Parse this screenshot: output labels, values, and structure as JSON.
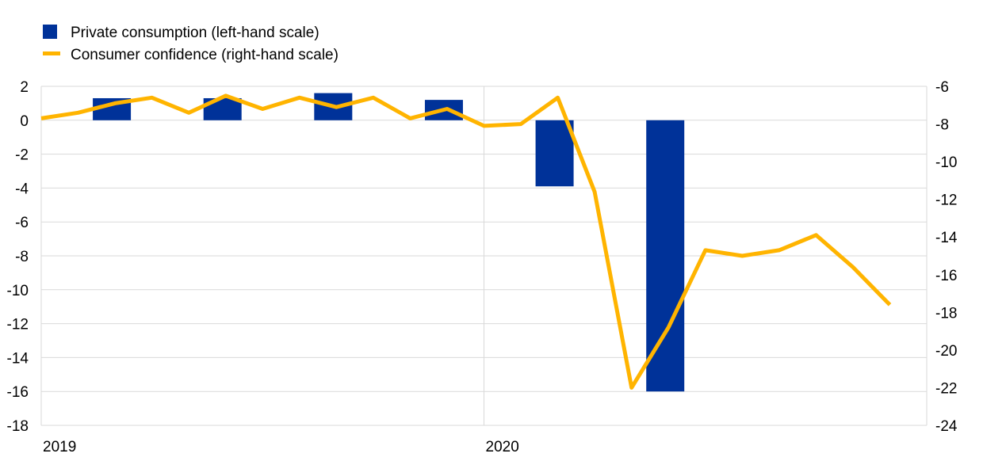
{
  "chart_data": {
    "type": "bar+line",
    "legend": [
      {
        "label": "Private consumption (left-hand scale)",
        "color": "#003299",
        "marker": "square"
      },
      {
        "label": "Consumer confidence (right-hand scale)",
        "color": "#FFB400",
        "marker": "line"
      }
    ],
    "legend_position": "top-left",
    "x_ticks": [
      "2019",
      "2020"
    ],
    "grid": true,
    "left_axis": {
      "ylim": [
        -18,
        2
      ],
      "ticks": [
        "2",
        "0",
        "-2",
        "-4",
        "-6",
        "-8",
        "-10",
        "-12",
        "-14",
        "-16",
        "-18"
      ]
    },
    "right_axis": {
      "ylim": [
        -24,
        -6
      ],
      "ticks": [
        "-6",
        "-8",
        "-10",
        "-12",
        "-14",
        "-16",
        "-18",
        "-20",
        "-22",
        "-24"
      ]
    },
    "bars": {
      "name": "Private consumption (left-hand scale)",
      "axis": "left",
      "x": [
        "2019 Q1",
        "2019 Q2",
        "2019 Q3",
        "2019 Q4",
        "2020 Q1",
        "2020 Q2"
      ],
      "values": [
        1.3,
        1.3,
        1.6,
        1.2,
        -3.9,
        -16.0
      ]
    },
    "line": {
      "name": "Consumer confidence (right-hand scale)",
      "axis": "right",
      "x": [
        "2019-01",
        "2019-02",
        "2019-03",
        "2019-04",
        "2019-05",
        "2019-06",
        "2019-07",
        "2019-08",
        "2019-09",
        "2019-10",
        "2019-11",
        "2019-12",
        "2020-01",
        "2020-02",
        "2020-03",
        "2020-04",
        "2020-05",
        "2020-06",
        "2020-07",
        "2020-08",
        "2020-09",
        "2020-10",
        "2020-11",
        "2020-12"
      ],
      "values": [
        -7.7,
        -7.4,
        -6.9,
        -6.6,
        -7.4,
        -6.5,
        -7.2,
        -6.6,
        -7.1,
        -6.6,
        -7.7,
        -7.2,
        -8.1,
        -8.0,
        -6.6,
        -11.6,
        -22.0,
        -18.8,
        -14.7,
        -15.0,
        -14.7,
        -13.9,
        -15.6,
        -17.6
      ]
    }
  }
}
